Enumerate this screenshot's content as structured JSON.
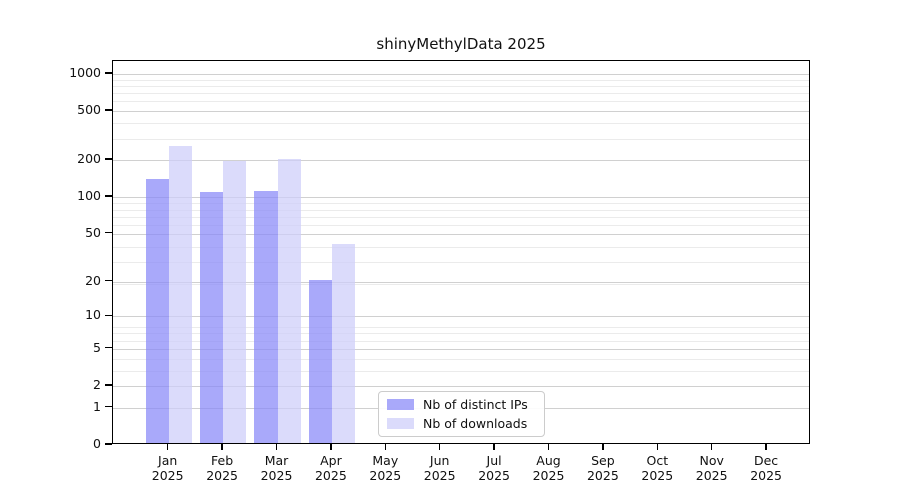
{
  "page": {
    "background_color": "#ffffff",
    "axis_color": "#000000",
    "grid_major_color": "#d0d0d0",
    "grid_minor_color": "#ebebeb"
  },
  "chart_data": {
    "type": "bar",
    "title": "shinyMethylData 2025",
    "categories": [
      {
        "month": "Jan",
        "year": "2025"
      },
      {
        "month": "Feb",
        "year": "2025"
      },
      {
        "month": "Mar",
        "year": "2025"
      },
      {
        "month": "Apr",
        "year": "2025"
      },
      {
        "month": "May",
        "year": "2025"
      },
      {
        "month": "Jun",
        "year": "2025"
      },
      {
        "month": "Jul",
        "year": "2025"
      },
      {
        "month": "Aug",
        "year": "2025"
      },
      {
        "month": "Sep",
        "year": "2025"
      },
      {
        "month": "Oct",
        "year": "2025"
      },
      {
        "month": "Nov",
        "year": "2025"
      },
      {
        "month": "Dec",
        "year": "2025"
      }
    ],
    "series": [
      {
        "name": "Nb of distinct IPs",
        "color": "rgba(136,136,248,0.72)",
        "values": [
          135,
          107,
          108,
          20,
          null,
          null,
          null,
          null,
          null,
          null,
          null,
          null
        ]
      },
      {
        "name": "Nb of downloads",
        "color": "rgba(205,205,250,0.72)",
        "values": [
          252,
          190,
          197,
          40,
          null,
          null,
          null,
          null,
          null,
          null,
          null,
          null
        ]
      }
    ],
    "y_ticks": [
      0,
      1,
      2,
      5,
      10,
      20,
      50,
      100,
      200,
      500,
      1000
    ],
    "y_scale": "log10(1+x)",
    "ylim": [
      0,
      1271
    ],
    "xlabel": "",
    "ylabel": "",
    "grid": true,
    "legend_position": "inside-bottom-center"
  }
}
